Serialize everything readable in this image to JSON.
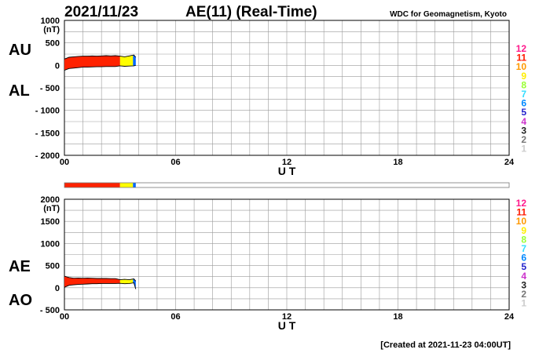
{
  "header": {
    "date": "2021/11/23",
    "title": "AE(11) (Real-Time)",
    "source": "WDC for Geomagnetism, Kyoto"
  },
  "footer": {
    "created": "[Created at 2021-11-23 04:00UT]"
  },
  "legend": {
    "items": [
      {
        "label": "12",
        "color": "#ff1a8c"
      },
      {
        "label": "11",
        "color": "#ff1a00"
      },
      {
        "label": "10",
        "color": "#ff9900"
      },
      {
        "label": "9",
        "color": "#ffee00"
      },
      {
        "label": "8",
        "color": "#99ff33"
      },
      {
        "label": "7",
        "color": "#33ddff"
      },
      {
        "label": "6",
        "color": "#0088ff"
      },
      {
        "label": "5",
        "color": "#2222cc"
      },
      {
        "label": "4",
        "color": "#cc33cc"
      },
      {
        "label": "3",
        "color": "#222222"
      },
      {
        "label": "2",
        "color": "#777777"
      },
      {
        "label": "1",
        "color": "#cccccc"
      }
    ]
  },
  "chart_data": [
    {
      "type": "area",
      "panel": "AU/AL",
      "labels": {
        "upper": "AU",
        "lower": "AL"
      },
      "ylabel": "(nT)",
      "xlabel": "U T",
      "xlim": [
        0,
        24
      ],
      "ylim": [
        -2000,
        1000
      ],
      "yticks": [
        1000,
        500,
        0,
        -500,
        -1000,
        -1500,
        -2000
      ],
      "ytick_labels": [
        "1000",
        "500",
        "0",
        "- 500",
        "- 1000",
        "- 1500",
        "- 2000"
      ],
      "xticks": [
        0,
        6,
        12,
        18,
        24
      ],
      "xtick_labels": [
        "00",
        "06",
        "12",
        "18",
        "24"
      ],
      "grid": true,
      "x": [
        0.0,
        0.25,
        0.5,
        0.75,
        1.0,
        1.25,
        1.5,
        1.75,
        2.0,
        2.25,
        2.5,
        2.75,
        3.0,
        3.25,
        3.5,
        3.75,
        3.85
      ],
      "series": [
        {
          "name": "AU",
          "values": [
            140,
            180,
            190,
            200,
            205,
            205,
            210,
            205,
            210,
            215,
            210,
            215,
            205,
            190,
            210,
            230,
            180
          ]
        },
        {
          "name": "AL",
          "values": [
            -110,
            -70,
            -60,
            -50,
            -40,
            -40,
            -35,
            -30,
            -30,
            -25,
            -25,
            -25,
            -10,
            -20,
            -15,
            -10,
            0
          ]
        }
      ],
      "station_colors": [
        {
          "from": 0.0,
          "to": 3.0,
          "color": "#ff2200"
        },
        {
          "from": 3.0,
          "to": 3.7,
          "color": "#ffff00"
        },
        {
          "from": 3.7,
          "to": 3.85,
          "color": "#0066ff"
        }
      ]
    },
    {
      "type": "area",
      "panel": "AE/AO",
      "labels": {
        "upper": "AE",
        "lower": "AO"
      },
      "ylabel": "(nT)",
      "xlabel": "U T",
      "xlim": [
        0,
        24
      ],
      "ylim": [
        -500,
        2000
      ],
      "yticks": [
        2000,
        1500,
        1000,
        500,
        0,
        -500
      ],
      "ytick_labels": [
        "2000",
        "1500",
        "1000",
        "500",
        "0",
        "- 500"
      ],
      "xticks": [
        0,
        6,
        12,
        18,
        24
      ],
      "xtick_labels": [
        "00",
        "06",
        "12",
        "18",
        "24"
      ],
      "grid": true,
      "x": [
        0.0,
        0.25,
        0.5,
        0.75,
        1.0,
        1.25,
        1.5,
        1.75,
        2.0,
        2.25,
        2.5,
        2.75,
        3.0,
        3.25,
        3.5,
        3.75,
        3.85
      ],
      "series": [
        {
          "name": "AE",
          "values": [
            260,
            230,
            215,
            220,
            215,
            220,
            215,
            210,
            210,
            210,
            205,
            205,
            180,
            190,
            180,
            200,
            150
          ]
        },
        {
          "name": "AO",
          "values": [
            10,
            55,
            65,
            75,
            80,
            85,
            90,
            90,
            95,
            95,
            95,
            95,
            100,
            90,
            95,
            110,
            -30
          ]
        }
      ],
      "station_colors": [
        {
          "from": 0.0,
          "to": 3.0,
          "color": "#ff2200"
        },
        {
          "from": 3.0,
          "to": 3.7,
          "color": "#ffff00"
        },
        {
          "from": 3.7,
          "to": 3.85,
          "color": "#0066ff"
        }
      ]
    }
  ]
}
